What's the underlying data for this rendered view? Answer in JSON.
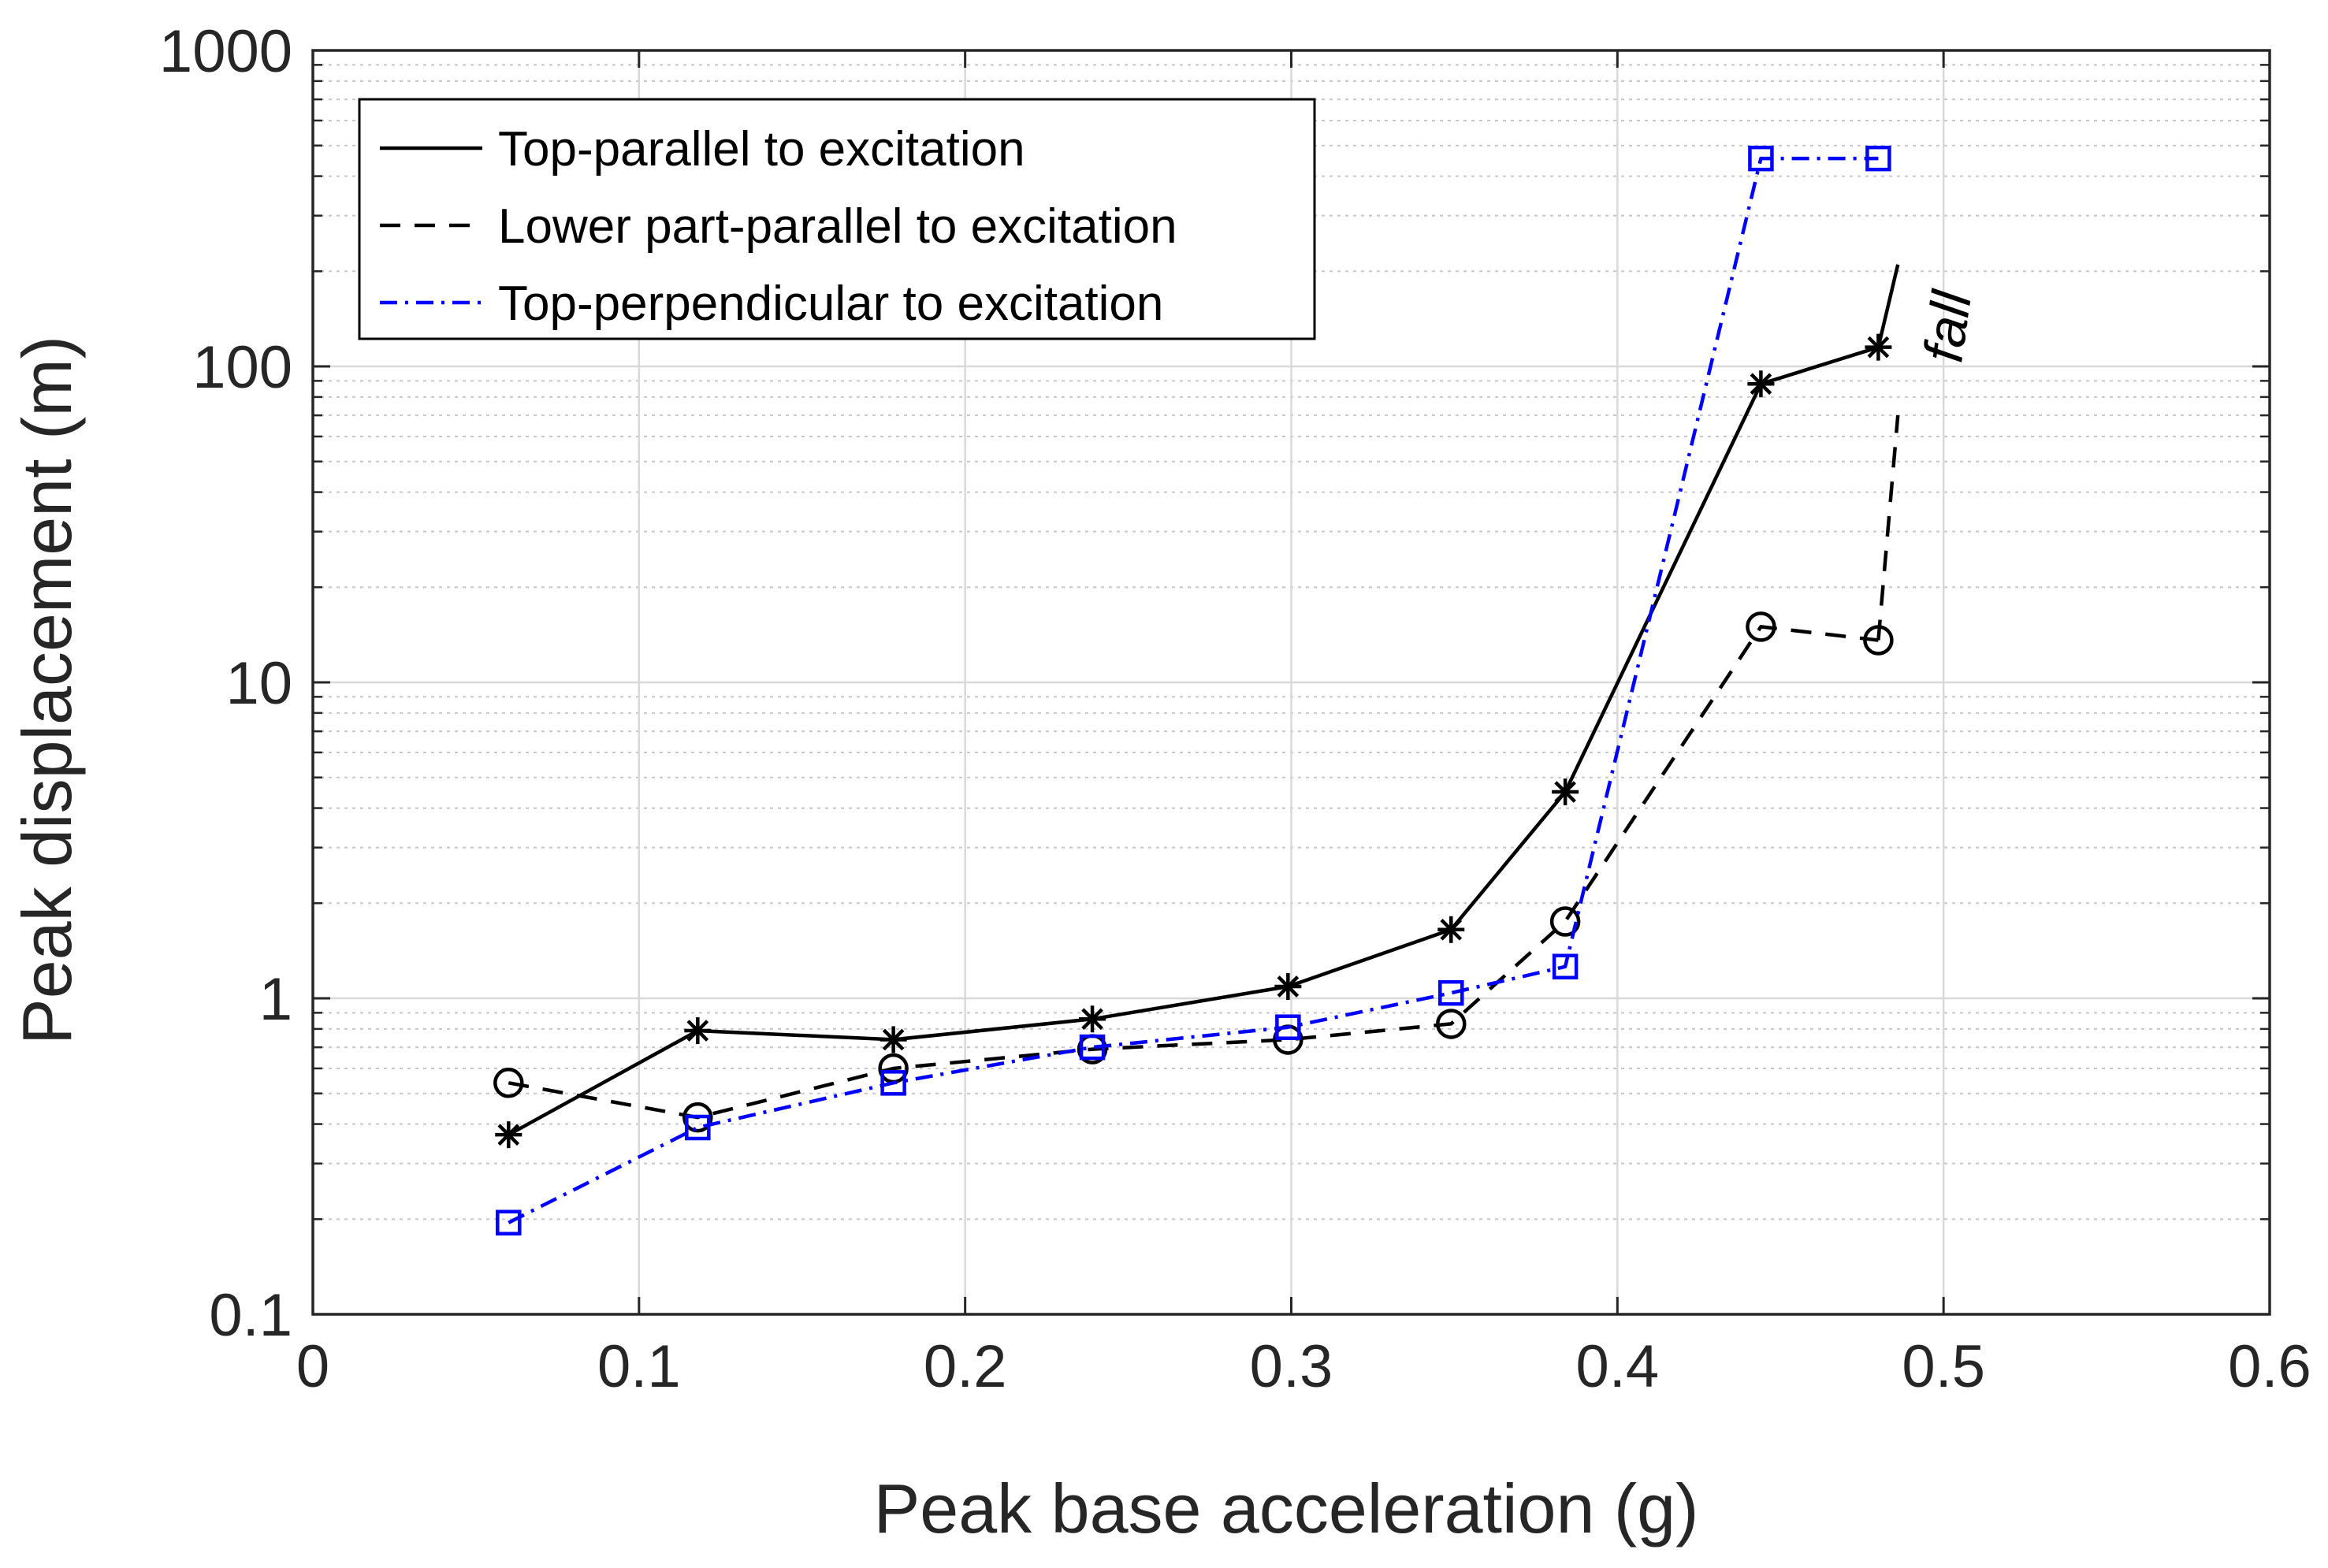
{
  "chart_data": {
    "type": "line",
    "xlabel": "Peak base acceleration (g)",
    "ylabel": "Peak displacement (m)",
    "xlim": [
      0,
      0.6
    ],
    "ylim": [
      0.1,
      1000
    ],
    "yscale": "log",
    "xticks": [
      0,
      0.1,
      0.2,
      0.3,
      0.4,
      0.5,
      0.6
    ],
    "xtick_labels": [
      "0",
      "0.1",
      "0.2",
      "0.3",
      "0.4",
      "0.5",
      "0.6"
    ],
    "yticks": [
      0.1,
      1,
      10,
      100,
      1000
    ],
    "ytick_labels": [
      "0.1",
      "1",
      "10",
      "100",
      "1000"
    ],
    "grid": true,
    "legend_position": "top-left",
    "annotation": "fall",
    "series": [
      {
        "name": "Top-parallel to excitation",
        "color": "#000000",
        "line_style": "solid",
        "marker": "asterisk",
        "x": [
          0.06,
          0.118,
          0.178,
          0.239,
          0.299,
          0.349,
          0.384,
          0.444,
          0.48
        ],
        "y": [
          0.37,
          0.79,
          0.74,
          0.86,
          1.09,
          1.65,
          4.5,
          88,
          115
        ],
        "fall_to": [
          0.486,
          210
        ]
      },
      {
        "name": "Lower part-parallel to excitation",
        "color": "#000000",
        "line_style": "dashed",
        "marker": "circle",
        "x": [
          0.06,
          0.118,
          0.178,
          0.239,
          0.299,
          0.349,
          0.384,
          0.444,
          0.48
        ],
        "y": [
          0.54,
          0.42,
          0.6,
          0.69,
          0.74,
          0.83,
          1.75,
          15,
          13.6
        ],
        "fall_to": [
          0.486,
          70
        ]
      },
      {
        "name": "Top-perpendicular to excitation",
        "color": "#0000ff",
        "line_style": "dashdot",
        "marker": "square",
        "x": [
          0.06,
          0.118,
          0.178,
          0.239,
          0.299,
          0.349,
          0.384,
          0.444,
          0.48
        ],
        "y": [
          0.195,
          0.39,
          0.54,
          0.7,
          0.81,
          1.04,
          1.26,
          455,
          455
        ]
      }
    ]
  }
}
